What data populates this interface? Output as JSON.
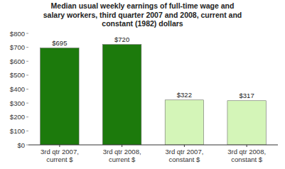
{
  "chart_data": {
    "type": "bar",
    "title": "Median usual weekly earnings of full-time wage and\nsalary workers, third quarter 2007 and 2008, current and\nconstant (1982) dollars",
    "categories": [
      "3rd qtr 2007,\ncurrent $",
      "3rd qtr 2008,\ncurrent $",
      "3rd qtr 2007,\nconstant $",
      "3rd qtr 2008,\nconstant $"
    ],
    "values": [
      695,
      720,
      322,
      317
    ],
    "value_labels": [
      "$695",
      "$720",
      "$322",
      "$317"
    ],
    "colors": [
      "#1c7a0c",
      "#1c7a0c",
      "#d4f5b8",
      "#d4f5b8"
    ],
    "ylim": [
      0,
      800
    ],
    "yticks": [
      {
        "value": 0,
        "label": "$0"
      },
      {
        "value": 100,
        "label": "$100"
      },
      {
        "value": 200,
        "label": "$200"
      },
      {
        "value": 300,
        "label": "$300"
      },
      {
        "value": 400,
        "label": "$400"
      },
      {
        "value": 500,
        "label": "$500"
      },
      {
        "value": 600,
        "label": "$600"
      },
      {
        "value": 700,
        "label": "$700"
      },
      {
        "value": 800,
        "label": "$800"
      }
    ],
    "data_labels": true,
    "grid": false
  }
}
